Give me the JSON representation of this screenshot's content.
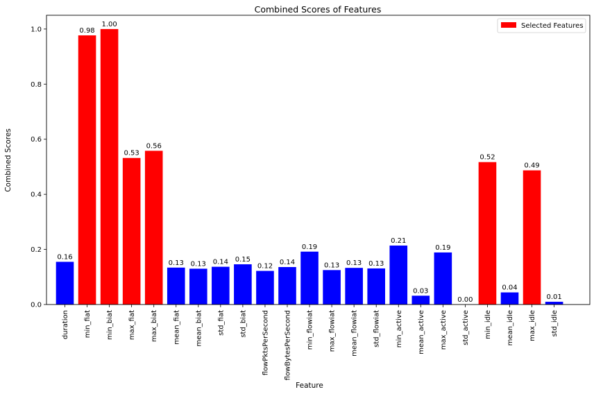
{
  "chart_data": {
    "type": "bar",
    "title": "Combined Scores of Features",
    "xlabel": "Feature",
    "ylabel": "Combined Scores",
    "ylim": [
      0,
      1.05
    ],
    "yticks": [
      0.0,
      0.2,
      0.4,
      0.6,
      0.8,
      1.0
    ],
    "ytick_labels": [
      "0.0",
      "0.2",
      "0.4",
      "0.6",
      "0.8",
      "1.0"
    ],
    "grid": false,
    "legend": {
      "position": "top-right",
      "entries": [
        "Selected Features"
      ]
    },
    "colors": {
      "selected": "#ff0000",
      "other": "#0000ff"
    },
    "categories": [
      "duration",
      "min_fiat",
      "min_biat",
      "max_fiat",
      "max_biat",
      "mean_fiat",
      "mean_biat",
      "std_fiat",
      "std_biat",
      "flowPktsPerSecond",
      "flowBytesPerSecond",
      "min_flowiat",
      "max_flowiat",
      "mean_flowiat",
      "std_flowiat",
      "min_active",
      "mean_active",
      "max_active",
      "std_active",
      "min_idle",
      "mean_idle",
      "max_idle",
      "std_idle"
    ],
    "values": [
      0.155,
      0.977,
      1.0,
      0.532,
      0.558,
      0.134,
      0.13,
      0.137,
      0.146,
      0.122,
      0.136,
      0.192,
      0.125,
      0.133,
      0.131,
      0.214,
      0.032,
      0.189,
      0.0,
      0.517,
      0.044,
      0.487,
      0.01
    ],
    "value_labels": [
      "0.16",
      "0.98",
      "1.00",
      "0.53",
      "0.56",
      "0.13",
      "0.13",
      "0.14",
      "0.15",
      "0.12",
      "0.14",
      "0.19",
      "0.13",
      "0.13",
      "0.13",
      "0.21",
      "0.03",
      "0.19",
      "0.00",
      "0.52",
      "0.04",
      "0.49",
      "0.01"
    ],
    "selected": [
      false,
      true,
      true,
      true,
      true,
      false,
      false,
      false,
      false,
      false,
      false,
      false,
      false,
      false,
      false,
      false,
      false,
      false,
      false,
      true,
      false,
      true,
      false
    ]
  }
}
